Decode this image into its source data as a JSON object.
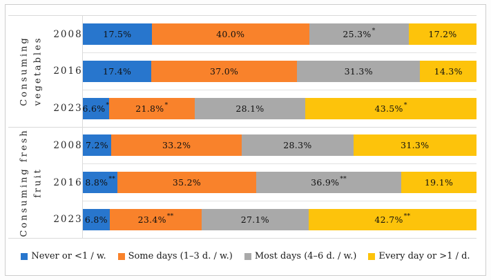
{
  "chart_data": {
    "type": "bar",
    "orientation": "horizontal",
    "stacked": true,
    "unit": "%",
    "x_range": [
      0,
      100
    ],
    "grid": "light-gray row separators, no axis ticks shown",
    "legend_position": "bottom",
    "series": [
      {
        "key": "never",
        "name": "Never or <1 / w.",
        "color": "#2876cd"
      },
      {
        "key": "some-days",
        "name": "Some days (1–3 d. / w.)",
        "color": "#f9822b"
      },
      {
        "key": "most-days",
        "name": "Most days (4–6 d. / w.)",
        "color": "#a9a9a9"
      },
      {
        "key": "every-day",
        "name": "Every day or >1 / d.",
        "color": "#fdc30b"
      }
    ],
    "groups": [
      {
        "label": "Consuming vegetables",
        "label_lines": [
          "Consuming",
          "vegetables"
        ],
        "rows": [
          {
            "year": "2008",
            "values": [
              17.5,
              40.0,
              25.3,
              17.2
            ],
            "labels": [
              "17.5%",
              "40.0%",
              "25.3%",
              "17.2%"
            ],
            "sig": [
              "",
              "",
              "*",
              ""
            ]
          },
          {
            "year": "2016",
            "values": [
              17.4,
              37.0,
              31.3,
              14.3
            ],
            "labels": [
              "17.4%",
              "37.0%",
              "31.3%",
              "14.3%"
            ],
            "sig": [
              "",
              "",
              "",
              ""
            ]
          },
          {
            "year": "2023",
            "values": [
              6.6,
              21.8,
              28.1,
              43.5
            ],
            "labels": [
              "6.6%",
              "21.8%",
              "28.1%",
              "43.5%"
            ],
            "sig": [
              "*",
              "*",
              "",
              "*"
            ]
          }
        ]
      },
      {
        "label": "Consuming fresh fruit",
        "label_lines": [
          "Consuming fresh",
          "fruit"
        ],
        "rows": [
          {
            "year": "2008",
            "values": [
              7.2,
              33.2,
              28.3,
              31.3
            ],
            "labels": [
              "7.2%",
              "33.2%",
              "28.3%",
              "31.3%"
            ],
            "sig": [
              "",
              "",
              "",
              ""
            ]
          },
          {
            "year": "2016",
            "values": [
              8.8,
              35.2,
              36.9,
              19.1
            ],
            "labels": [
              "8.8%",
              "35.2%",
              "36.9%",
              "19.1%"
            ],
            "sig": [
              "**",
              "",
              "**",
              ""
            ]
          },
          {
            "year": "2023",
            "values": [
              6.8,
              23.4,
              27.1,
              42.7
            ],
            "labels": [
              "6.8%",
              "23.4%",
              "27.1%",
              "42.7%"
            ],
            "sig": [
              "",
              "**",
              "",
              "**"
            ]
          }
        ]
      }
    ],
    "legend": {
      "items": [
        "Never or <1 / w.",
        "Some days (1–3 d. / w.)",
        "Most days (4–6 d. / w.)",
        "Every day or >1 / d."
      ]
    },
    "colors": {
      "grid_line": "#d9d9d9",
      "frame_border": "#cdcdcd",
      "label_text": "#262626"
    }
  }
}
